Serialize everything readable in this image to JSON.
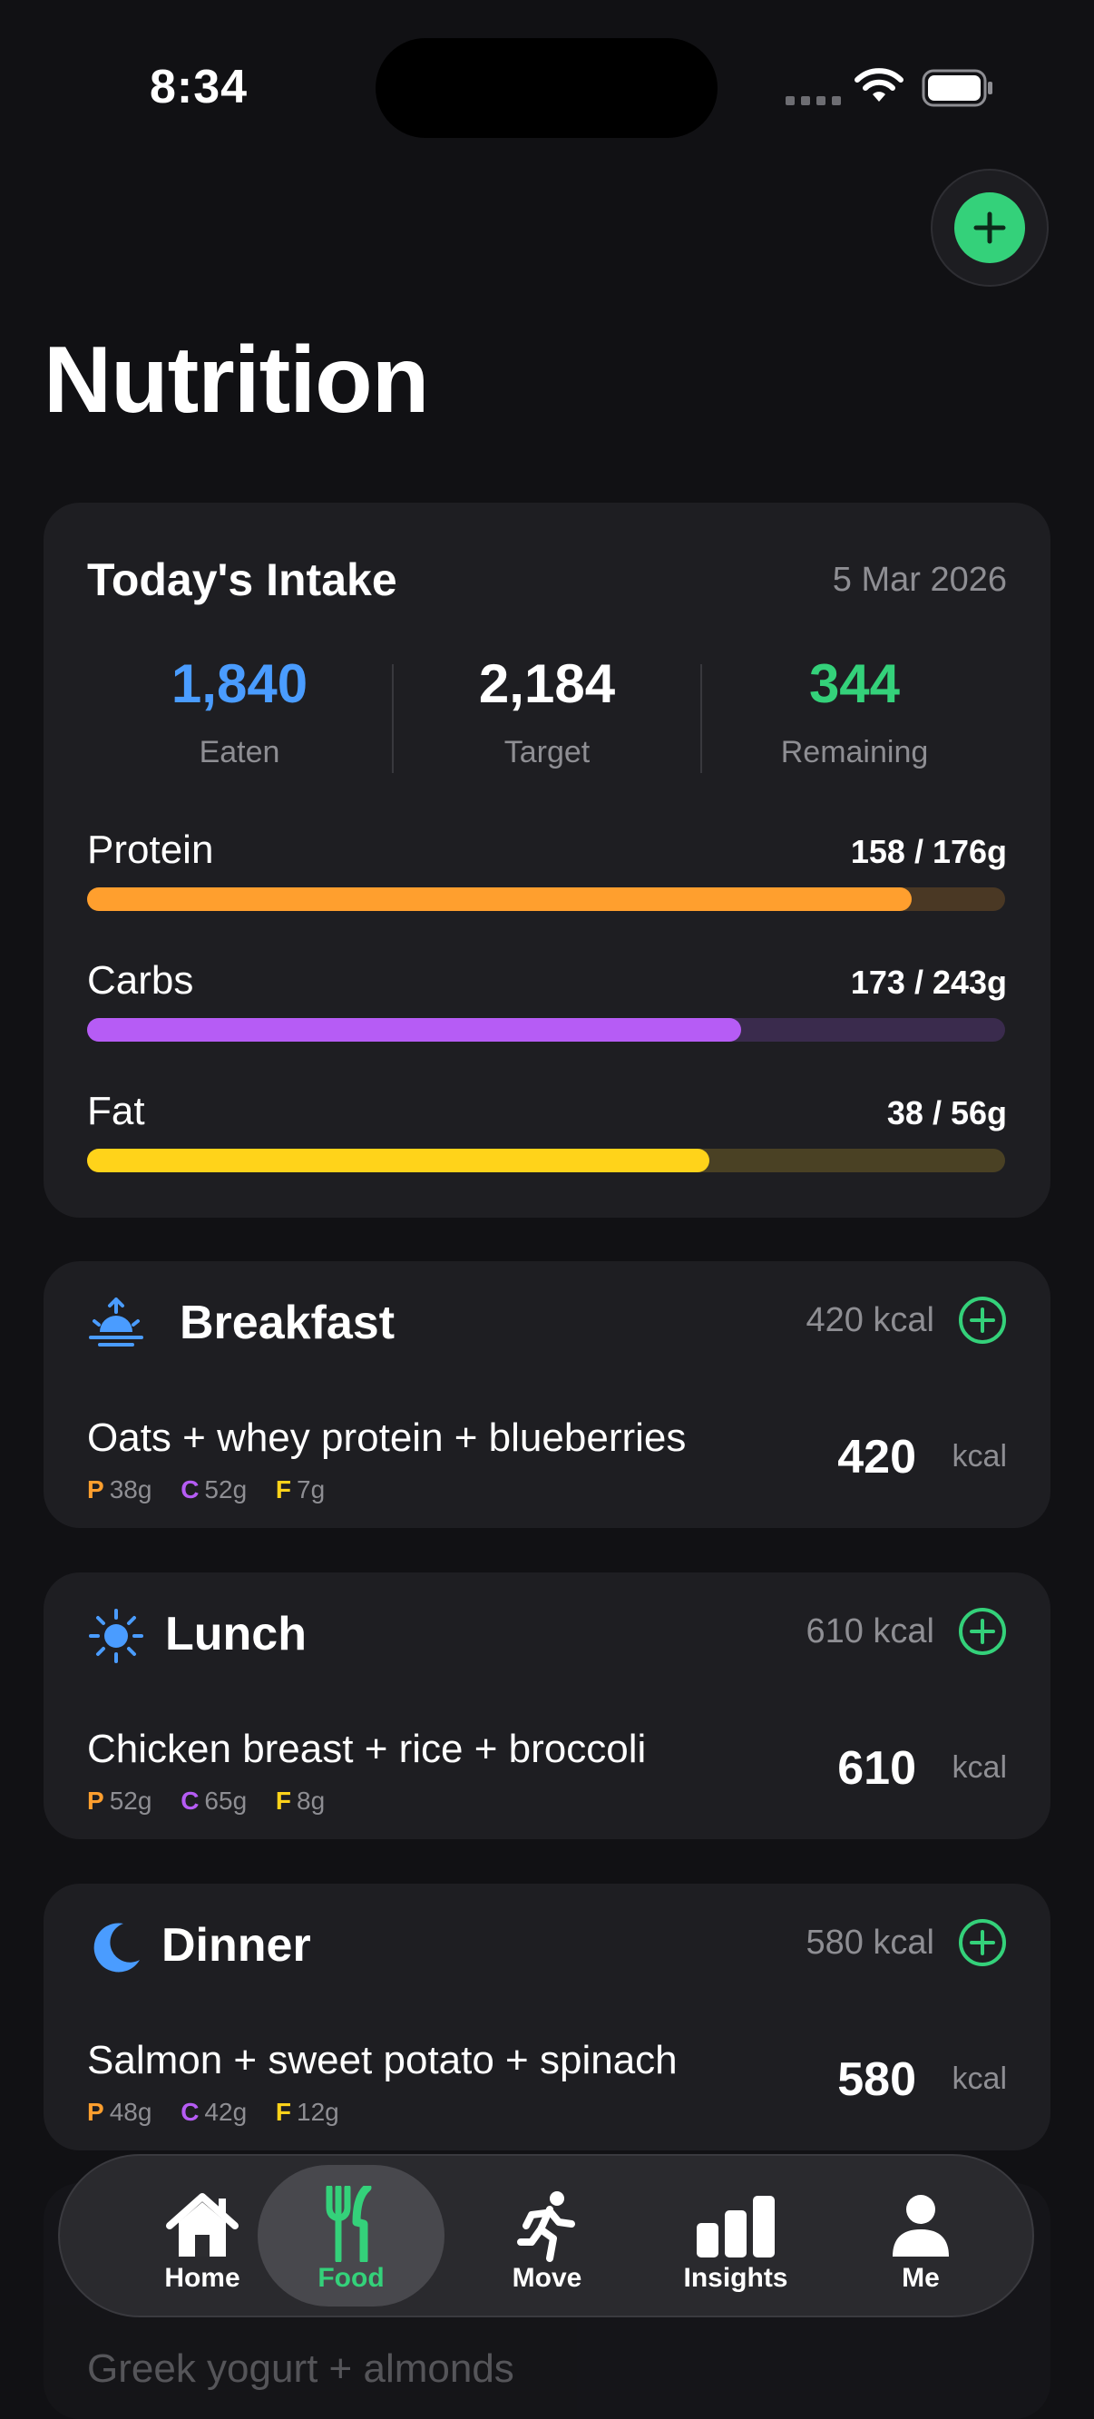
{
  "status": {
    "time": "8:34"
  },
  "header": {
    "title": "Nutrition"
  },
  "intake": {
    "title": "Today's Intake",
    "date": "5 Mar 2026",
    "eaten": {
      "value": "1,840",
      "label": "Eaten",
      "color": "#4a9cff"
    },
    "target": {
      "value": "2,184",
      "label": "Target"
    },
    "remaining": {
      "value": "344",
      "label": "Remaining",
      "color": "#34d17a"
    },
    "macros": [
      {
        "name": "Protein",
        "value": "158 / 176g",
        "fraction": 0.898,
        "color": "#ff9f2e",
        "track": "#4a3824"
      },
      {
        "name": "Carbs",
        "value": "173 / 243g",
        "fraction": 0.712,
        "color": "#b65cf5",
        "track": "#3a2b4d"
      },
      {
        "name": "Fat",
        "value": "38 / 56g",
        "fraction": 0.678,
        "color": "#ffd31a",
        "track": "#4a4124"
      }
    ]
  },
  "meals": [
    {
      "title": "Breakfast",
      "kcal": "420 kcal",
      "food": "Oats + whey protein + blueberries",
      "p": "38g",
      "c": "52g",
      "f": "7g",
      "total": "420",
      "unit": "kcal",
      "icon": "sunrise-icon"
    },
    {
      "title": "Lunch",
      "kcal": "610 kcal",
      "food": "Chicken breast + rice + broccoli",
      "p": "52g",
      "c": "65g",
      "f": "8g",
      "total": "610",
      "unit": "kcal",
      "icon": "sun-icon"
    },
    {
      "title": "Dinner",
      "kcal": "580 kcal",
      "food": "Salmon + sweet potato + spinach",
      "p": "48g",
      "c": "42g",
      "f": "12g",
      "total": "580",
      "unit": "kcal",
      "icon": "moon-icon"
    }
  ],
  "macro_letters": {
    "p": "P",
    "c": "C",
    "f": "F"
  },
  "snack_peek": {
    "food": "Greek yogurt + almonds"
  },
  "tabs": [
    {
      "label": "Home",
      "icon": "home-icon"
    },
    {
      "label": "Food",
      "icon": "fork-knife-icon",
      "active": true
    },
    {
      "label": "Move",
      "icon": "runner-icon"
    },
    {
      "label": "Insights",
      "icon": "bar-chart-icon"
    },
    {
      "label": "Me",
      "icon": "person-icon"
    }
  ],
  "colors": {
    "accent": "#34d17a",
    "background": "#111114",
    "card": "#1e1e22",
    "meal_icon": "#4a9cff"
  }
}
